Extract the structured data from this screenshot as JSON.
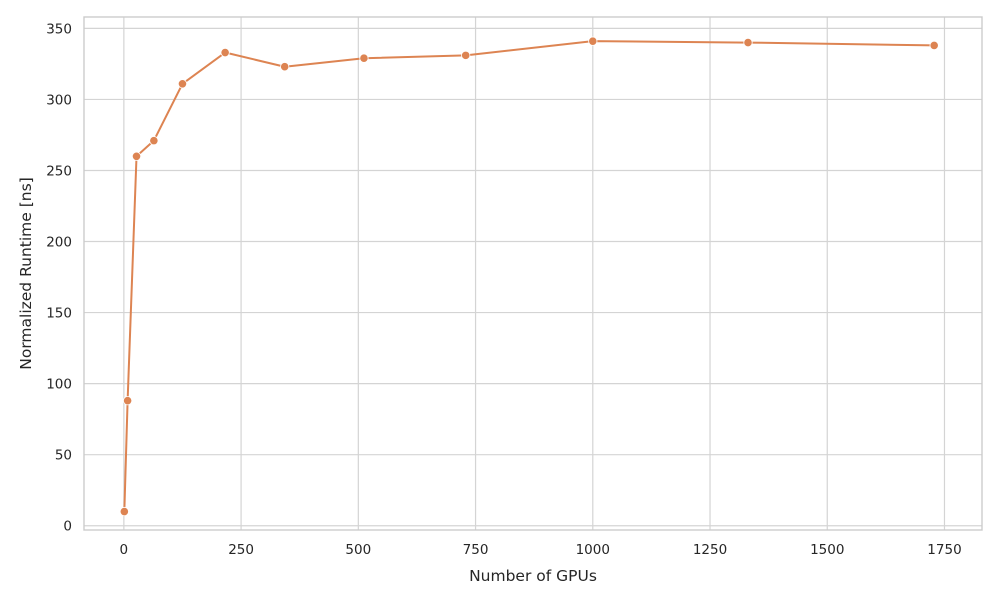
{
  "chart_data": {
    "type": "line",
    "title": "",
    "xlabel": "Number of GPUs",
    "ylabel": "Normalized Runtime [ns]",
    "xlim": [
      -85,
      1830
    ],
    "ylim": [
      -3,
      358
    ],
    "xticks": [
      0,
      250,
      500,
      750,
      1000,
      1250,
      1500,
      1750
    ],
    "yticks": [
      0,
      50,
      100,
      150,
      200,
      250,
      300,
      350
    ],
    "grid": true,
    "legend": "none",
    "series": [
      {
        "color": "#dd8452",
        "x": [
          1,
          8,
          27,
          64,
          125,
          216,
          343,
          512,
          729,
          1000,
          1331,
          1728
        ],
        "y": [
          10,
          88,
          260,
          271,
          311,
          333,
          323,
          329,
          331,
          341,
          340,
          338
        ]
      }
    ]
  }
}
